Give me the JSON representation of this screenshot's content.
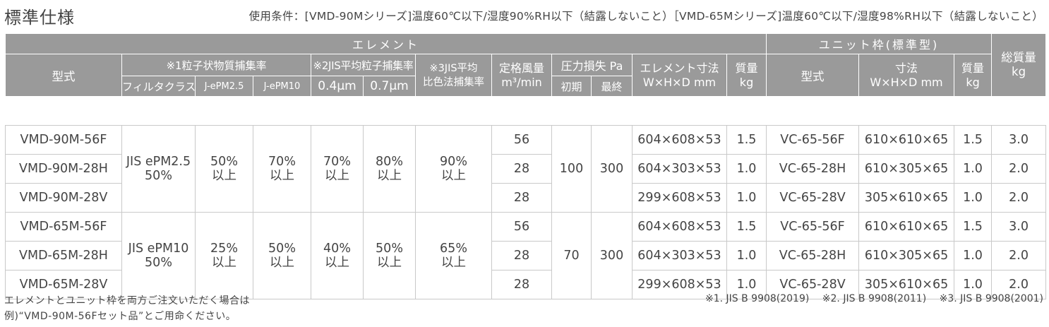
{
  "title": "標準仕様",
  "conditions": "使用条件：[VMD-90Mシリーズ]温度60℃以下/湿度90%RH以下（結露しないこと）［VMD-65Mシリーズ]温度60℃以下/湿度98%RH以下（結露しないこと）",
  "header": {
    "element": "エレメント",
    "unit_frame": "ユニット枠(標準型)",
    "total_mass": "総質量",
    "total_mass_unit": "kg",
    "model": "型式",
    "capture1": "※1粒子状物質捕集率",
    "capture2": "※2JIS平均粒子捕集率",
    "capture3_a": "※3JIS平均",
    "capture3_b": "比色法捕集率",
    "airflow_a": "定格風量",
    "airflow_b": "m³/min",
    "pressure": "圧力損失 Pa",
    "dims_a": "エレメント寸法",
    "dims_b": "W×H×D mm",
    "mass_a": "質量",
    "mass_b": "kg",
    "unit_model": "型式",
    "unit_dims_a": "寸法",
    "unit_dims_b": "W×H×D mm",
    "unit_mass_a": "質量",
    "unit_mass_b": "kg",
    "filter_class": "フィルタクラス",
    "epm25": "J-ePM2.5",
    "epm10": "J-ePM10",
    "size04": "0.4μm",
    "size07": "0.7μm",
    "initial": "初期",
    "final": "最終"
  },
  "groups": [
    {
      "filter_class": [
        "JIS ePM2.5",
        "50%"
      ],
      "epm25": [
        "50%",
        "以上"
      ],
      "epm10": [
        "70%",
        "以上"
      ],
      "s04": [
        "70%",
        "以上"
      ],
      "s07": [
        "80%",
        "以上"
      ],
      "colorimetric": [
        "90%",
        "以上"
      ],
      "initial": "100",
      "final": "300",
      "rows": [
        {
          "model": "VMD-90M-56F",
          "airflow": "56",
          "dims": "604×608×53",
          "mass": "1.5",
          "unit_model": "VC-65-56F",
          "unit_dims": "610×610×65",
          "unit_mass": "1.5",
          "total": "3.0"
        },
        {
          "model": "VMD-90M-28H",
          "airflow": "28",
          "dims": "604×303×53",
          "mass": "1.0",
          "unit_model": "VC-65-28H",
          "unit_dims": "610×305×65",
          "unit_mass": "1.0",
          "total": "2.0"
        },
        {
          "model": "VMD-90M-28V",
          "airflow": "28",
          "dims": "299×608×53",
          "mass": "1.0",
          "unit_model": "VC-65-28V",
          "unit_dims": "305×610×65",
          "unit_mass": "1.0",
          "total": "2.0"
        }
      ]
    },
    {
      "filter_class": [
        "JIS ePM10",
        "50%"
      ],
      "epm25": [
        "25%",
        "以上"
      ],
      "epm10": [
        "50%",
        "以上"
      ],
      "s04": [
        "40%",
        "以上"
      ],
      "s07": [
        "50%",
        "以上"
      ],
      "colorimetric": [
        "65%",
        "以上"
      ],
      "initial": "70",
      "final": "300",
      "rows": [
        {
          "model": "VMD-65M-56F",
          "airflow": "56",
          "dims": "604×608×53",
          "mass": "1.5",
          "unit_model": "VC-65-56F",
          "unit_dims": "610×610×65",
          "unit_mass": "1.5",
          "total": "3.0"
        },
        {
          "model": "VMD-65M-28H",
          "airflow": "28",
          "dims": "604×303×53",
          "mass": "1.0",
          "unit_model": "VC-65-28H",
          "unit_dims": "610×305×65",
          "unit_mass": "1.0",
          "total": "2.0"
        },
        {
          "model": "VMD-65M-28V",
          "airflow": "28",
          "dims": "299×608×53",
          "mass": "1.0",
          "unit_model": "VC-65-28V",
          "unit_dims": "305×610×65",
          "unit_mass": "1.0",
          "total": "2.0"
        }
      ]
    }
  ],
  "footnote_line1": "エレメントとユニット枠を両方ご注文いただく場合は",
  "footnote_line2": "例)“VMD-90M-56Fセット品”とご用命ください。",
  "refs": [
    "※1. JIS B 9908(2019)",
    "※2. JIS B 9908(2011)",
    "※3. JIS B 9908(2001)"
  ]
}
